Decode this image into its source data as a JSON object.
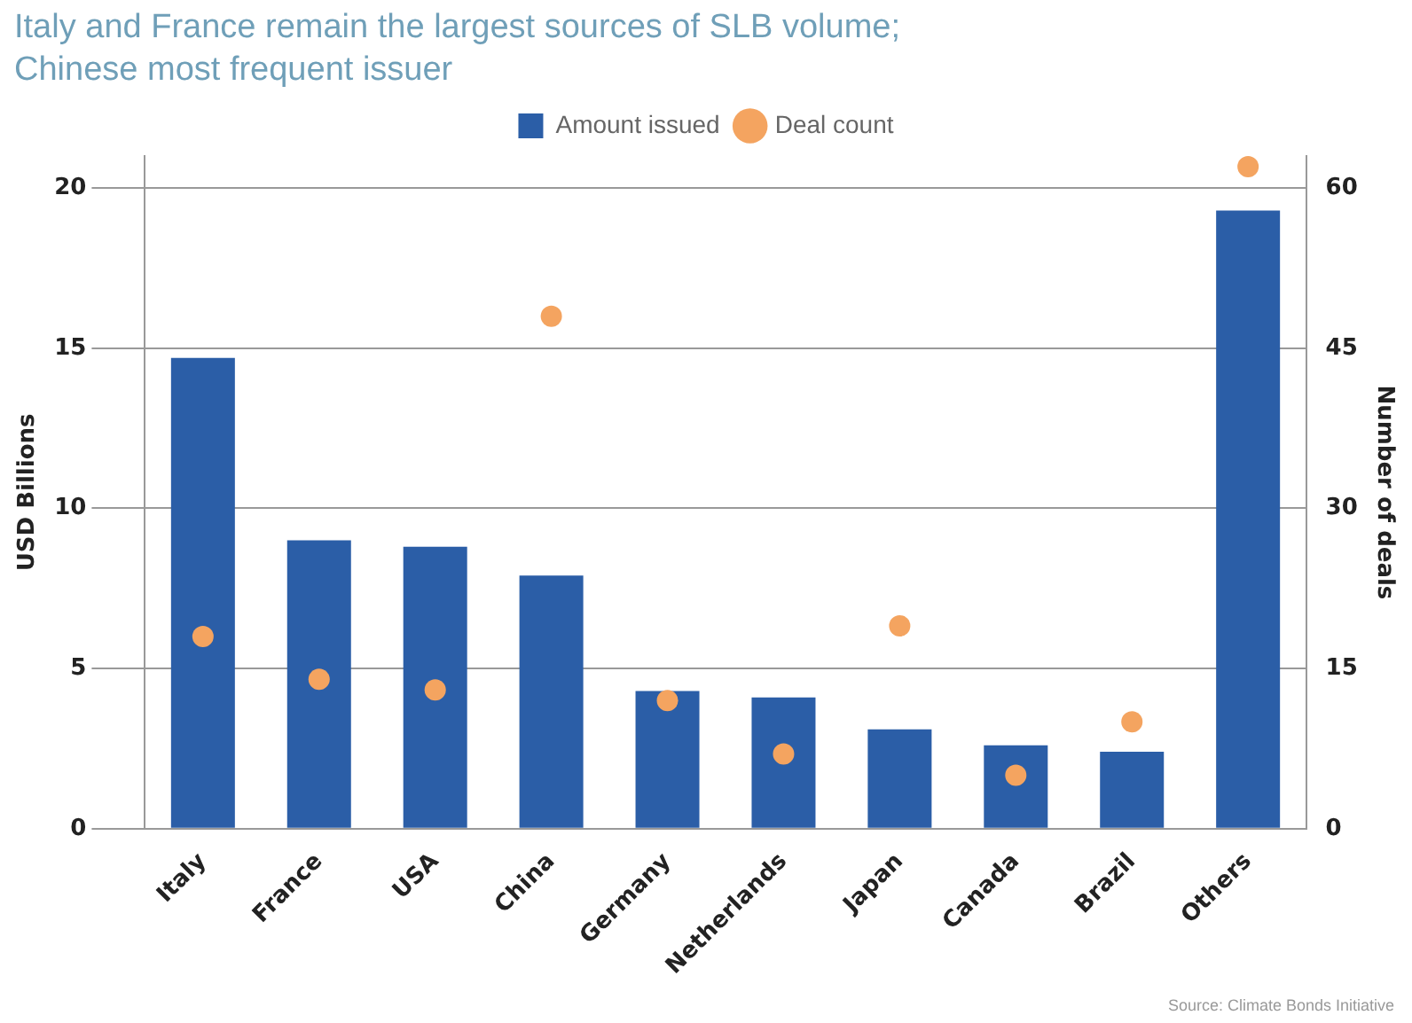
{
  "chart_data": {
    "type": "bar",
    "title": "Italy and France remain the largest sources of SLB volume; Chinese most frequent issuer",
    "categories": [
      "Italy",
      "France",
      "USA",
      "China",
      "Germany",
      "Netherlands",
      "Japan",
      "Canada",
      "Brazil",
      "Others"
    ],
    "series": [
      {
        "name": "Amount issued",
        "color": "#2b5ea7",
        "values": [
          14.7,
          9.0,
          8.8,
          7.9,
          4.3,
          4.1,
          3.1,
          2.6,
          2.4,
          19.3
        ]
      },
      {
        "name": "Deal count",
        "type": "scatter",
        "axis": "y2",
        "color": "#f4a460",
        "values": [
          18,
          14,
          13,
          48,
          12,
          7,
          19,
          5,
          10,
          62
        ]
      }
    ],
    "ylabel": "USD Billions",
    "y2label": "Number of deals",
    "ylim": [
      0,
      21
    ],
    "yticks": [
      0,
      5,
      10,
      15,
      20
    ],
    "y2lim": [
      0,
      63
    ],
    "y2ticks": [
      0,
      15,
      30,
      45,
      60
    ],
    "grid": "y",
    "legend": "top",
    "marker": "circle",
    "annotations": [
      "Source: Climate Bonds Initiative"
    ]
  }
}
